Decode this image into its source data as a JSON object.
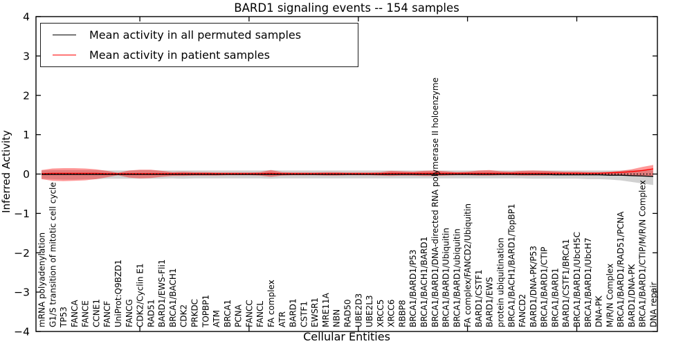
{
  "title": "BARD1 signaling events -- 154 samples",
  "legend": {
    "items": [
      {
        "label": "Mean activity in all permuted samples",
        "color": "#000000"
      },
      {
        "label": "Mean activity in patient samples",
        "color": "#ff0000"
      }
    ]
  },
  "chart_data": {
    "type": "line",
    "title": "BARD1 signaling events -- 154 samples",
    "xlabel": "Cellular Entities",
    "ylabel": "Inferred Activity",
    "ylim": [
      -4,
      4
    ],
    "yticks": [
      -4,
      -3,
      -2,
      -1,
      0,
      1,
      2,
      3,
      4
    ],
    "grid": false,
    "legend_position": "upper left",
    "colors": {
      "permuted_line": "#000000",
      "patient_line": "#ff0000",
      "permuted_band": "#999999",
      "patient_band": "#ff0000",
      "zero_line": "#000000"
    },
    "entities": [
      "mRNA polyadenylation",
      "G1/S transition of mitotic cell cycle",
      "TP53",
      "FANCA",
      "FANCE",
      "CCNE1",
      "FANCF",
      "UniProt:Q9BZD1",
      "FANCG",
      "CDK2/Cyclin E1",
      "RAD51",
      "BARD1/EWS-Fli1",
      "BRCA1/BACH1",
      "CDK2",
      "PRKDC",
      "TOPBP1",
      "ATM",
      "BRCA1",
      "PCNA",
      "FANCC",
      "FANCL",
      "FA complex",
      "ATR",
      "BARD1",
      "CSTF1",
      "EWSR1",
      "MRE11A",
      "NBN",
      "RAD50",
      "UBE2D3",
      "UBE2L3",
      "XRCC5",
      "XRCC6",
      "RBBP8",
      "BRCA1/BARD1/P53",
      "BRCA1/BACH1/BARD1",
      "BRCA1/BARD1/DNA-directed RNA polymerase II holoenzyme",
      "BRCA1/BARD1/Ubiquitin",
      "BRCA1/BARD1/ubiquitin",
      "FA complex/FANCD2/Ubiquitin",
      "BARD1/CSTF1",
      "BARD1/EWS",
      "protein ubiquitination",
      "BRCA1/BACH1/BARD1/TopBP1",
      "FANCD2",
      "BARD1/DNA-PK/P53",
      "BRCA1/BARD1/CTIP",
      "BRCA1/BARD1",
      "BARD1/CSTF1/BRCA1",
      "BRCA1/BARD1/UbcH5C",
      "BRCA1/BARD1/UbcH7",
      "DNA-PK",
      "M/R/N Complex",
      "BRCA1/BARD1/RAD51/PCNA",
      "BARD1/DNA-PK",
      "BRCA1/BARD1/CTIP/M/R/N Complex",
      "DNA repair"
    ],
    "series": [
      {
        "name": "Mean activity in all permuted samples",
        "color": "#000000",
        "values": [
          -0.01,
          -0.01,
          -0.01,
          -0.01,
          -0.01,
          -0.01,
          -0.01,
          -0.01,
          -0.01,
          -0.01,
          -0.01,
          -0.01,
          -0.01,
          -0.01,
          -0.01,
          -0.01,
          -0.01,
          -0.01,
          -0.01,
          -0.01,
          -0.01,
          -0.01,
          -0.01,
          -0.01,
          -0.01,
          -0.01,
          -0.01,
          -0.01,
          -0.01,
          -0.01,
          -0.01,
          -0.01,
          -0.01,
          -0.01,
          -0.01,
          -0.01,
          -0.01,
          -0.01,
          -0.01,
          -0.01,
          -0.01,
          -0.01,
          -0.01,
          -0.01,
          -0.01,
          -0.01,
          -0.01,
          -0.02,
          -0.02,
          -0.02,
          -0.02,
          -0.02,
          -0.03,
          -0.03,
          -0.04,
          -0.05,
          -0.06
        ]
      },
      {
        "name": "Mean activity in patient samples",
        "color": "#ff0000",
        "values": [
          0.01,
          0.02,
          0.02,
          0.02,
          0.02,
          0.02,
          0.01,
          0.01,
          0.01,
          0.01,
          0.01,
          0.01,
          0.01,
          0.01,
          0.01,
          0.01,
          0.01,
          0.01,
          0.01,
          0.01,
          0.01,
          0.02,
          0.01,
          0.01,
          0.01,
          0.01,
          0.01,
          0.01,
          0.01,
          0.01,
          0.01,
          0.01,
          0.02,
          0.02,
          0.02,
          0.02,
          0.02,
          0.02,
          0.02,
          0.02,
          0.02,
          0.02,
          0.02,
          0.02,
          0.02,
          0.02,
          0.02,
          0.02,
          0.02,
          0.02,
          0.02,
          0.02,
          0.03,
          0.04,
          0.06,
          0.09,
          0.13
        ]
      }
    ],
    "bands": [
      {
        "name": "permuted-envelope",
        "color": "#999999",
        "opacity": 0.45,
        "upper": [
          0.09,
          0.1,
          0.1,
          0.1,
          0.1,
          0.1,
          0.09,
          0.09,
          0.09,
          0.1,
          0.1,
          0.09,
          0.09,
          0.09,
          0.09,
          0.09,
          0.09,
          0.09,
          0.09,
          0.09,
          0.09,
          0.1,
          0.09,
          0.09,
          0.09,
          0.09,
          0.09,
          0.09,
          0.09,
          0.09,
          0.09,
          0.09,
          0.09,
          0.09,
          0.09,
          0.09,
          0.09,
          0.09,
          0.09,
          0.09,
          0.09,
          0.09,
          0.09,
          0.09,
          0.09,
          0.09,
          0.09,
          0.09,
          0.09,
          0.09,
          0.09,
          0.09,
          0.09,
          0.09,
          0.1,
          0.1,
          0.1
        ],
        "lower": [
          -0.12,
          -0.13,
          -0.14,
          -0.14,
          -0.13,
          -0.13,
          -0.12,
          -0.12,
          -0.12,
          -0.12,
          -0.12,
          -0.12,
          -0.11,
          -0.12,
          -0.11,
          -0.11,
          -0.11,
          -0.11,
          -0.11,
          -0.11,
          -0.11,
          -0.12,
          -0.11,
          -0.11,
          -0.11,
          -0.11,
          -0.11,
          -0.11,
          -0.11,
          -0.11,
          -0.11,
          -0.11,
          -0.11,
          -0.11,
          -0.11,
          -0.11,
          -0.11,
          -0.11,
          -0.11,
          -0.11,
          -0.11,
          -0.11,
          -0.11,
          -0.11,
          -0.11,
          -0.12,
          -0.12,
          -0.12,
          -0.12,
          -0.12,
          -0.13,
          -0.13,
          -0.14,
          -0.16,
          -0.2,
          -0.24,
          -0.28
        ]
      },
      {
        "name": "patient-envelope",
        "color": "#ff0000",
        "opacity": 0.4,
        "upper": [
          0.1,
          0.14,
          0.15,
          0.15,
          0.14,
          0.12,
          0.08,
          0.03,
          0.09,
          0.11,
          0.11,
          0.08,
          0.05,
          0.06,
          0.05,
          0.05,
          0.04,
          0.04,
          0.04,
          0.04,
          0.05,
          0.1,
          0.05,
          0.04,
          0.04,
          0.04,
          0.05,
          0.05,
          0.04,
          0.04,
          0.04,
          0.05,
          0.08,
          0.07,
          0.06,
          0.08,
          0.09,
          0.07,
          0.05,
          0.06,
          0.09,
          0.1,
          0.07,
          0.06,
          0.08,
          0.09,
          0.08,
          0.07,
          0.06,
          0.06,
          0.05,
          0.05,
          0.06,
          0.08,
          0.12,
          0.18,
          0.23
        ],
        "lower": [
          -0.13,
          -0.17,
          -0.18,
          -0.17,
          -0.16,
          -0.13,
          -0.08,
          -0.03,
          -0.09,
          -0.11,
          -0.1,
          -0.07,
          -0.05,
          -0.05,
          -0.04,
          -0.04,
          -0.04,
          -0.03,
          -0.03,
          -0.03,
          -0.04,
          -0.07,
          -0.04,
          -0.03,
          -0.03,
          -0.03,
          -0.04,
          -0.04,
          -0.03,
          -0.03,
          -0.03,
          -0.04,
          -0.05,
          -0.04,
          -0.04,
          -0.05,
          -0.05,
          -0.04,
          -0.03,
          -0.03,
          -0.04,
          -0.04,
          -0.03,
          -0.03,
          -0.04,
          -0.04,
          -0.04,
          -0.03,
          -0.03,
          -0.03,
          -0.03,
          -0.03,
          -0.03,
          -0.03,
          -0.04,
          -0.04,
          -0.05
        ]
      }
    ],
    "zero_line": {
      "y": 0,
      "style": "dotted",
      "color": "#000000"
    },
    "x_major_tick_every": 10
  }
}
